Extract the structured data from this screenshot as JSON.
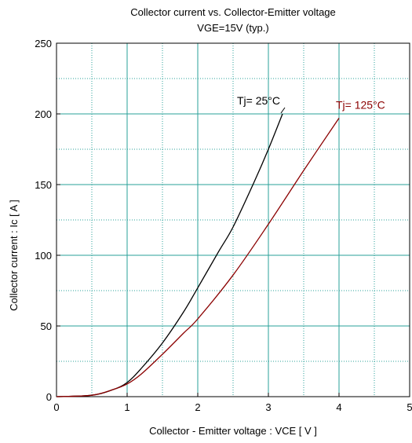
{
  "chart_data": {
    "type": "line",
    "title": "Collector current  vs.  Collector-Emitter voltage",
    "subtitle": "VGE=15V  (typ.)",
    "xlabel": "Collector - Emitter voltage  :  VCE  [ V ]",
    "ylabel": "Collector current  :  Ic  [ A ]",
    "xlim": [
      0,
      5
    ],
    "ylim": [
      0,
      250
    ],
    "x_ticks": [
      "0",
      "1",
      "2",
      "3",
      "4",
      "5"
    ],
    "y_ticks": [
      "0",
      "50",
      "100",
      "150",
      "200",
      "250"
    ],
    "x_minor_step": 0.5,
    "y_minor_step": 25,
    "grid": true,
    "grid_color": "#2aa198",
    "series": [
      {
        "name": "Tj= 25°C",
        "color": "#000000",
        "x": [
          0,
          0.5,
          0.8,
          1.0,
          1.2,
          1.5,
          1.8,
          2.0,
          2.3,
          2.5,
          2.8,
          3.0,
          3.2
        ],
        "y": [
          0,
          1,
          5,
          10,
          20,
          38,
          60,
          77,
          103,
          120,
          152,
          175,
          200
        ]
      },
      {
        "name": "Tj= 125°C",
        "color": "#8b0000",
        "x": [
          0,
          0.5,
          0.8,
          1.0,
          1.2,
          1.5,
          1.8,
          2.0,
          2.5,
          3.0,
          3.5,
          4.0
        ],
        "y": [
          0,
          1,
          5,
          9,
          16,
          30,
          45,
          55,
          86,
          122,
          160,
          197
        ]
      }
    ]
  }
}
